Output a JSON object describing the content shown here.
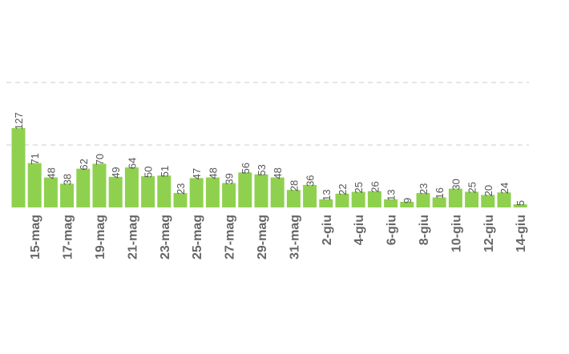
{
  "chart_data": {
    "type": "bar",
    "categories": [
      null,
      "15-mag",
      null,
      "17-mag",
      null,
      "19-mag",
      null,
      "21-mag",
      null,
      "23-mag",
      null,
      "25-mag",
      null,
      "27-mag",
      null,
      "29-mag",
      null,
      "31-mag",
      null,
      "2-giu",
      null,
      "4-giu",
      null,
      "6-giu",
      null,
      "8-giu",
      null,
      "10-giu",
      null,
      "12-giu",
      null,
      "14-giu"
    ],
    "values": [
      127,
      71,
      48,
      38,
      62,
      70,
      49,
      64,
      50,
      51,
      23,
      47,
      48,
      39,
      56,
      53,
      48,
      28,
      36,
      13,
      22,
      25,
      26,
      13,
      9,
      23,
      16,
      30,
      25,
      20,
      24,
      5
    ],
    "color": "#8fd14f",
    "ylim": [
      0,
      200
    ],
    "yticks": [
      0,
      100,
      200
    ],
    "grid": true
  }
}
